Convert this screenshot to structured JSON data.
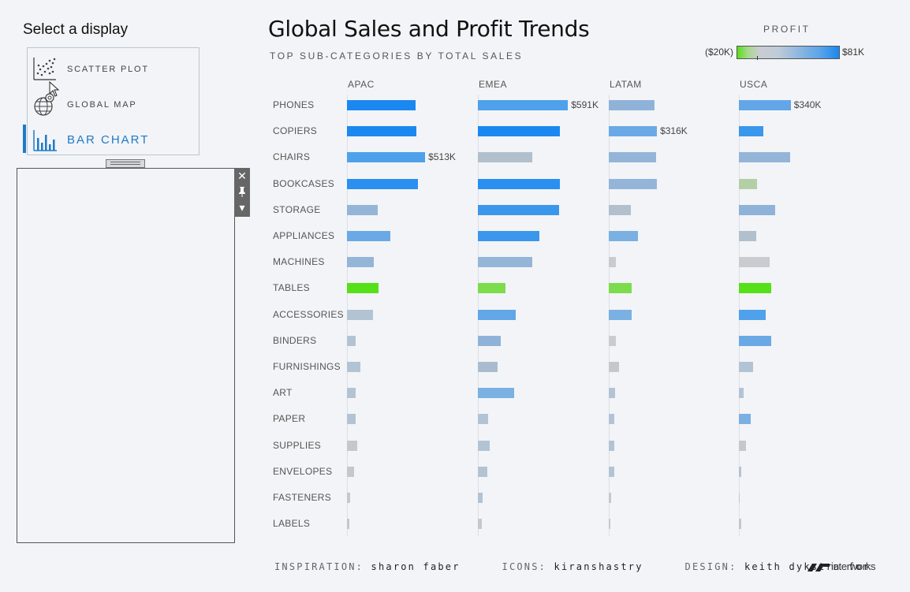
{
  "sidebar": {
    "title": "Select a display",
    "items": [
      {
        "label": "SCATTER PLOT",
        "icon": "scatter-plot-icon"
      },
      {
        "label": "GLOBAL MAP",
        "icon": "globe-icon"
      },
      {
        "label": "BAR CHART",
        "icon": "bar-chart-icon",
        "active": true
      }
    ]
  },
  "panel_tools": {
    "close": "✕",
    "pin": "📌",
    "menu": "▾"
  },
  "header": {
    "title": "Global Sales and Profit Trends",
    "subtitle": "TOP SUB-CATEGORIES BY TOTAL SALES"
  },
  "legend": {
    "title": "PROFIT",
    "min_label": "($20K)",
    "max_label": "$81K",
    "min_color": "#55e018",
    "mid_color": "#c9cdd2",
    "max_color": "#1a88f0"
  },
  "chart_data": {
    "type": "bar",
    "title": "Global Sales and Profit Trends",
    "subtitle": "TOP SUB-CATEGORIES BY TOTAL SALES",
    "regions": [
      "APAC",
      "EMEA",
      "LATAM",
      "USCA"
    ],
    "categories": [
      "PHONES",
      "COPIERS",
      "CHAIRS",
      "BOOKCASES",
      "STORAGE",
      "APPLIANCES",
      "MACHINES",
      "TABLES",
      "ACCESSORIES",
      "BINDERS",
      "FURNISHINGS",
      "ART",
      "PAPER",
      "SUPPLIES",
      "ENVELOPES",
      "FASTENERS",
      "LABELS"
    ],
    "sales_k": {
      "APAC": [
        450,
        455,
        513,
        465,
        200,
        285,
        175,
        208,
        170,
        55,
        90,
        55,
        55,
        65,
        45,
        20,
        15
      ],
      "EMEA": [
        591,
        540,
        355,
        540,
        535,
        405,
        355,
        180,
        250,
        150,
        130,
        240,
        65,
        80,
        60,
        30,
        25
      ],
      "LATAM": [
        300,
        316,
        310,
        315,
        145,
        190,
        45,
        150,
        150,
        45,
        65,
        40,
        35,
        35,
        38,
        18,
        12
      ],
      "USCA": [
        340,
        160,
        335,
        120,
        240,
        115,
        200,
        210,
        175,
        210,
        95,
        30,
        80,
        45,
        15,
        5,
        15
      ]
    },
    "profit_color": {
      "APAC": [
        "#1a88f0",
        "#1a88f0",
        "#4ea1ea",
        "#2a8ff0",
        "#94b5d8",
        "#6aa9e6",
        "#94b5d8",
        "#55e018",
        "#b2c3d4",
        "#b2c3d4",
        "#b2c3d4",
        "#b2c3d4",
        "#b2c3d4",
        "#c4c7cc",
        "#c4c7cc",
        "#c4c7cc",
        "#c4c7cc"
      ],
      "EMEA": [
        "#4ea1ea",
        "#1a88f0",
        "#b2bfcc",
        "#2a8ff0",
        "#3b97ec",
        "#3b97ec",
        "#94b5d8",
        "#7cdc4c",
        "#62a6e8",
        "#8fb2d9",
        "#a9bccf",
        "#7ab0e2",
        "#b2c3d4",
        "#b2c3d4",
        "#b2c3d4",
        "#b2c3d4",
        "#c4c7cc"
      ],
      "LATAM": [
        "#8fb2d9",
        "#6aa9e6",
        "#94b5d8",
        "#94b5d8",
        "#b2bfcc",
        "#7ab0e2",
        "#c9cbd0",
        "#7cdc4c",
        "#7ab0e2",
        "#c9cbd0",
        "#c4c7cc",
        "#b2c3d4",
        "#b2c3d4",
        "#b2c3d4",
        "#b2c3d4",
        "#c4c7cc",
        "#c4c7cc"
      ],
      "USCA": [
        "#62a6e8",
        "#3b97ec",
        "#94b5d8",
        "#b4cfa6",
        "#8fb2d9",
        "#b2bfcc",
        "#c9cbd0",
        "#55e018",
        "#4ea1ea",
        "#6aa9e6",
        "#b2c3d4",
        "#b2c3d4",
        "#7ab0e2",
        "#c4c7cc",
        "#b2c3d4",
        "#c4c7cc",
        "#c4c7cc"
      ]
    },
    "data_labels": [
      {
        "region": "EMEA",
        "category": "PHONES",
        "text": "$591K"
      },
      {
        "region": "USCA",
        "category": "PHONES",
        "text": "$340K"
      },
      {
        "region": "LATAM",
        "category": "COPIERS",
        "text": "$316K"
      },
      {
        "region": "APAC",
        "category": "CHAIRS",
        "text": "$513K"
      }
    ],
    "xlim_k": [
      0,
      600
    ],
    "grid": false
  },
  "footer": {
    "inspiration_key": "INSPIRATION:",
    "inspiration_val": "sharon faber",
    "icons_key": "ICONS:",
    "icons_val": "kiranshastry",
    "design_key": "DESIGN:",
    "design_val": "keith dykstra for",
    "logo_text": "interworks"
  }
}
